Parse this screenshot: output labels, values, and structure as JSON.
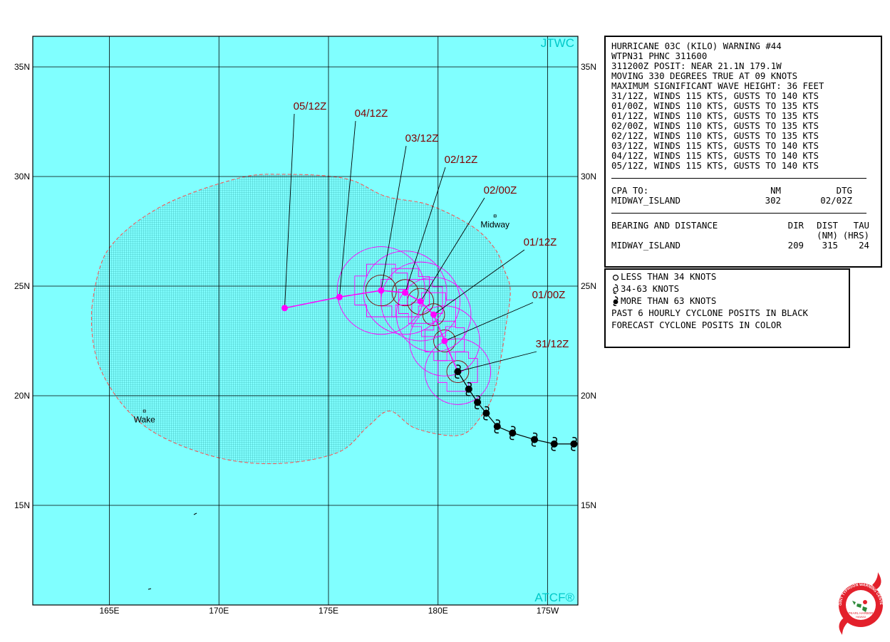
{
  "map": {
    "ocean_color": "#80ffff",
    "grid_color": "#000000",
    "danger_color": "#ff4d4d",
    "forecast_color": "#ff00ff",
    "past_track_color": "#000000",
    "label_color": "#800000",
    "lon_labels": [
      "165E",
      "170E",
      "175E",
      "180E",
      "175W"
    ],
    "lat_labels": [
      "35N",
      "30N",
      "25N",
      "20N",
      "15N"
    ],
    "corner_top": "JTWC",
    "corner_bottom": "ATCF®",
    "places": [
      {
        "name": "Midway",
        "lat": 28.2,
        "lon": 182.6
      },
      {
        "name": "Wake",
        "lat": 19.3,
        "lon": 166.6
      }
    ],
    "past_track": [
      {
        "lat": 17.8,
        "lon": 186.2
      },
      {
        "lat": 17.8,
        "lon": 185.3
      },
      {
        "lat": 18.0,
        "lon": 184.4
      },
      {
        "lat": 18.3,
        "lon": 183.4
      },
      {
        "lat": 18.6,
        "lon": 182.7
      },
      {
        "lat": 19.2,
        "lon": 182.2
      },
      {
        "lat": 19.7,
        "lon": 181.8
      },
      {
        "lat": 20.3,
        "lon": 181.4
      },
      {
        "lat": 21.1,
        "lon": 180.9
      }
    ],
    "forecast": [
      {
        "label": "31/12Z",
        "lat": 21.1,
        "lon": 180.9,
        "r64": 0.5,
        "r50": 0.9,
        "r34": 1.5
      },
      {
        "label": "01/00Z",
        "lat": 22.5,
        "lon": 180.3,
        "r64": 0.5,
        "r50": 0.9,
        "r34": 1.6
      },
      {
        "label": "01/12Z",
        "lat": 23.7,
        "lon": 179.8,
        "r64": 0.5,
        "r50": 1.0,
        "r34": 1.7
      },
      {
        "label": "02/00Z",
        "lat": 24.3,
        "lon": 179.2,
        "r64": 0.6,
        "r50": 1.0,
        "r34": 1.8
      },
      {
        "label": "02/12Z",
        "lat": 24.7,
        "lon": 178.5,
        "r64": 0.6,
        "r50": 1.1,
        "r34": 1.9
      },
      {
        "label": "03/12Z",
        "lat": 24.8,
        "lon": 177.4,
        "r64": 0.7,
        "r50": 1.2,
        "r34": 2.0
      },
      {
        "label": "04/12Z",
        "lat": 24.5,
        "lon": 175.5,
        "r64": 0,
        "r50": 0,
        "r34": 0
      },
      {
        "label": "05/12Z",
        "lat": 24.0,
        "lon": 173.0,
        "r64": 0,
        "r50": 0,
        "r34": 0
      }
    ]
  },
  "warning": {
    "lines": [
      "HURRICANE 03C (KILO) WARNING #44",
      "WTPN31 PHNC 311600",
      "311200Z POSIT: NEAR 21.1N 179.1W",
      "MOVING 330 DEGREES TRUE AT 09 KNOTS",
      "MAXIMUM SIGNIFICANT WAVE HEIGHT: 36 FEET",
      "31/12Z, WINDS 115 KTS, GUSTS TO 140 KTS",
      "01/00Z, WINDS 110 KTS, GUSTS TO 135 KTS",
      "01/12Z, WINDS 110 KTS, GUSTS TO 135 KTS",
      "02/00Z, WINDS 110 KTS, GUSTS TO 135 KTS",
      "02/12Z, WINDS 110 KTS, GUSTS TO 135 KTS",
      "03/12Z, WINDS 115 KTS, GUSTS TO 140 KTS",
      "04/12Z, WINDS 115 KTS, GUSTS TO 140 KTS",
      "05/12Z, WINDS 115 KTS, GUSTS TO 140 KTS"
    ],
    "cpa": {
      "header": "CPA TO:",
      "col_nm": "NM",
      "col_dtg": "DTG",
      "place": "MIDWAY_ISLAND",
      "nm": "302",
      "dtg": "02/02Z"
    },
    "bearing": {
      "header": "BEARING AND DISTANCE",
      "col_dir": "DIR",
      "col_dist": "DIST",
      "col_tau": "TAU",
      "sub_dist": "(NM)",
      "sub_tau": "(HRS)",
      "place": "MIDWAY_ISLAND",
      "dir": "209",
      "dist": "315",
      "tau": "24"
    }
  },
  "legend": {
    "items": [
      {
        "symbol": "open-circle-icon",
        "text": "LESS THAN 34 KNOTS"
      },
      {
        "symbol": "tropical-storm-icon",
        "text": "34-63 KNOTS"
      },
      {
        "symbol": "hurricane-icon",
        "text": "MORE THAN 63 KNOTS"
      }
    ],
    "note1": "PAST 6 HOURLY CYCLONE POSITS IN BLACK",
    "note2": "FORECAST CYCLONE POSITS IN COLOR"
  },
  "logo": {
    "ring_text": "JOINT TYPHOON WARNING CENTER",
    "bottom_text": "PEARL HARBOR",
    "sub_text": "HAWAII",
    "color": "#e3202b"
  }
}
